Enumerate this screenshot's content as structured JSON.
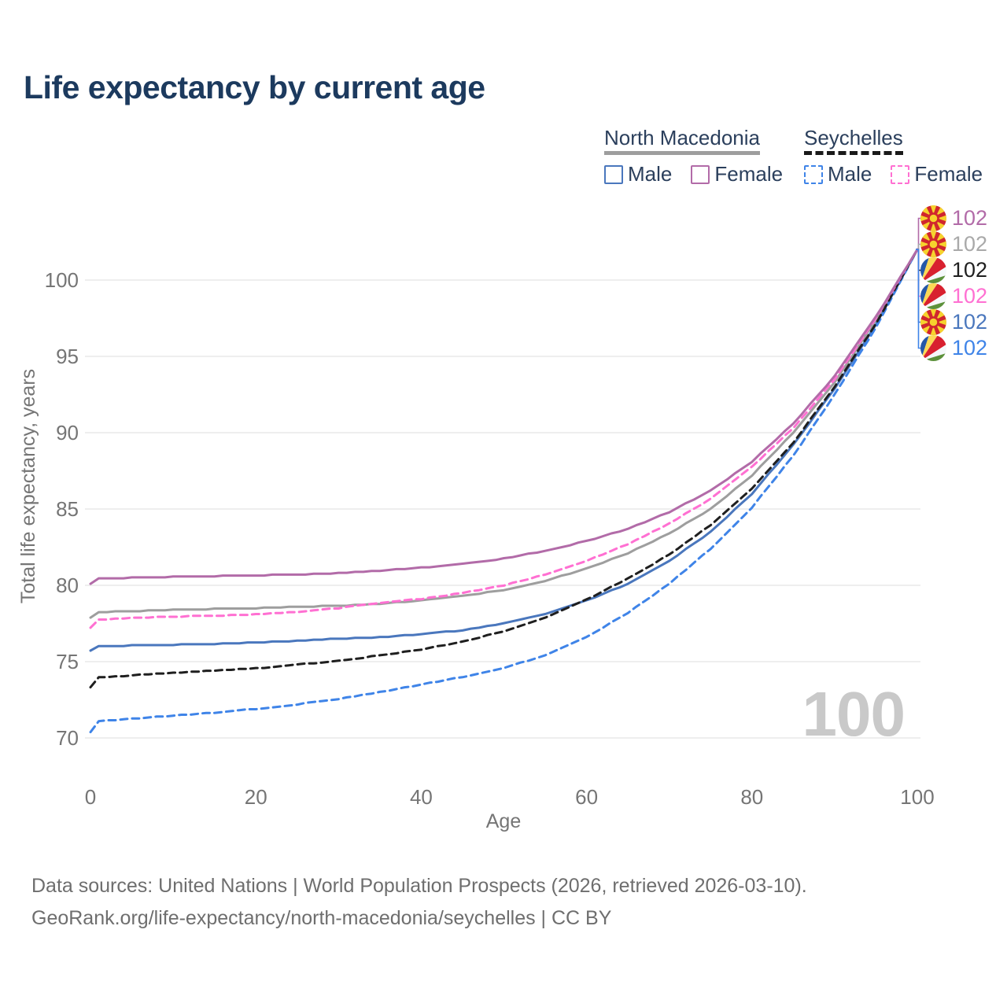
{
  "title": "Life expectancy by current age",
  "legend": {
    "groups": [
      {
        "label": "North Macedonia",
        "underline_color": "#9e9e9e",
        "underline_style": "solid"
      },
      {
        "label": "Seychelles",
        "underline_color": "#1a1a1a",
        "underline_style": "dashed"
      }
    ],
    "items": [
      {
        "label": "Male",
        "color": "#4a77bd",
        "dashed": false
      },
      {
        "label": "Female",
        "color": "#b26ba8",
        "dashed": false
      },
      {
        "label": "Male",
        "color": "#3f84e8",
        "dashed": true
      },
      {
        "label": "Female",
        "color": "#ff70d2",
        "dashed": true
      }
    ]
  },
  "watermark_current_age": "100",
  "footer": {
    "line1": "Data sources: United Nations | World Population Prospects (2026, retrieved 2026-03-10).",
    "line2": "GeoRank.org/life-expectancy/north-macedonia/seychelles | CC BY"
  },
  "chart_data": {
    "type": "line",
    "title": "Life expectancy by current age",
    "xlabel": "Age",
    "ylabel": "Total life expectancy, years",
    "xlim": [
      0,
      100
    ],
    "ylim": [
      69,
      103
    ],
    "x_ticks": [
      0,
      20,
      40,
      60,
      80,
      100
    ],
    "y_ticks": [
      70,
      75,
      80,
      85,
      90,
      95,
      100
    ],
    "grid": "horizontal",
    "legend_position": "top-right",
    "x": [
      0,
      1,
      5,
      10,
      15,
      20,
      25,
      30,
      35,
      40,
      45,
      50,
      55,
      60,
      65,
      70,
      75,
      80,
      85,
      90,
      95,
      100
    ],
    "series": [
      {
        "id": "nm-male",
        "name": "North Macedonia — Male",
        "country": "North Macedonia",
        "sex": "Male",
        "color": "#4a77bd",
        "dash": false,
        "values": [
          75.7,
          76.0,
          76.05,
          76.1,
          76.15,
          76.25,
          76.35,
          76.5,
          76.6,
          76.8,
          77.05,
          77.5,
          78.1,
          79.0,
          80.1,
          81.6,
          83.5,
          86.0,
          89.2,
          92.9,
          97.1,
          102
        ]
      },
      {
        "id": "nm-all",
        "name": "North Macedonia — Both sexes",
        "country": "North Macedonia",
        "sex": "Both",
        "color": "#9e9e9e",
        "dash": false,
        "values": [
          77.9,
          78.25,
          78.3,
          78.4,
          78.45,
          78.5,
          78.6,
          78.65,
          78.8,
          79.0,
          79.3,
          79.7,
          80.3,
          81.1,
          82.1,
          83.4,
          85.0,
          87.2,
          90.0,
          93.3,
          97.4,
          102
        ]
      },
      {
        "id": "sc-male",
        "name": "Seychelles — Male",
        "country": "Seychelles",
        "sex": "Male",
        "color": "#3f84e8",
        "dash": true,
        "values": [
          70.4,
          71.1,
          71.25,
          71.45,
          71.65,
          71.9,
          72.2,
          72.55,
          73.0,
          73.5,
          74.0,
          74.6,
          75.4,
          76.6,
          78.2,
          80.1,
          82.4,
          85.1,
          88.5,
          92.5,
          96.9,
          102
        ]
      },
      {
        "id": "sc-all",
        "name": "Seychelles — Both sexes",
        "country": "Seychelles",
        "sex": "Both",
        "color": "#1f1f1f",
        "dash": true,
        "values": [
          73.3,
          73.95,
          74.1,
          74.25,
          74.4,
          74.55,
          74.8,
          75.05,
          75.4,
          75.8,
          76.3,
          77.0,
          77.9,
          79.05,
          80.45,
          82.0,
          83.95,
          86.35,
          89.35,
          93.0,
          97.15,
          102
        ]
      },
      {
        "id": "sc-female",
        "name": "Seychelles — Female",
        "country": "Seychelles",
        "sex": "Female",
        "color": "#ff70d2",
        "dash": true,
        "values": [
          77.2,
          77.75,
          77.85,
          77.95,
          78.0,
          78.1,
          78.25,
          78.5,
          78.85,
          79.1,
          79.5,
          80.0,
          80.7,
          81.6,
          82.7,
          84.05,
          85.65,
          87.75,
          90.3,
          93.5,
          97.5,
          102
        ]
      },
      {
        "id": "nm-female",
        "name": "North Macedonia — Female",
        "country": "North Macedonia",
        "sex": "Female",
        "color": "#b26ba8",
        "dash": false,
        "values": [
          80.1,
          80.45,
          80.5,
          80.55,
          80.6,
          80.65,
          80.7,
          80.8,
          80.95,
          81.15,
          81.4,
          81.75,
          82.25,
          82.9,
          83.7,
          84.8,
          86.2,
          88.1,
          90.6,
          93.7,
          97.6,
          102
        ]
      }
    ],
    "end_labels": [
      {
        "flag": "mk",
        "country": "North Macedonia",
        "value": "102",
        "color": "#b26ba8"
      },
      {
        "flag": "mk",
        "country": "North Macedonia",
        "value": "102",
        "color": "#a9a9a9"
      },
      {
        "flag": "sc",
        "country": "Seychelles",
        "value": "102",
        "color": "#1f1f1f"
      },
      {
        "flag": "sc",
        "country": "Seychelles",
        "value": "102",
        "color": "#ff70d2"
      },
      {
        "flag": "mk",
        "country": "North Macedonia",
        "value": "102",
        "color": "#4a77bd"
      },
      {
        "flag": "sc",
        "country": "Seychelles",
        "value": "102",
        "color": "#3f84e8"
      }
    ]
  }
}
